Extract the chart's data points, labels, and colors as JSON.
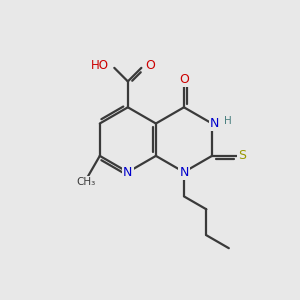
{
  "background_color": "#e8e8e8",
  "atom_colors": {
    "C": "#3a3a3a",
    "N": "#0000cc",
    "O": "#cc0000",
    "S": "#999900",
    "H": "#4a8080"
  },
  "bond_color": "#3a3a3a",
  "bond_width": 1.6,
  "figsize": [
    3.0,
    3.0
  ],
  "dpi": 100
}
